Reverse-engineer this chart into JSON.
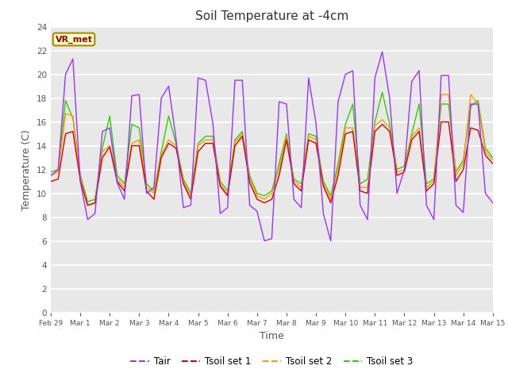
{
  "title": "Soil Temperature at -4cm",
  "xlabel": "Time",
  "ylabel": "Temperature (C)",
  "ylim": [
    0,
    24
  ],
  "yticks": [
    0,
    2,
    4,
    6,
    8,
    10,
    12,
    14,
    16,
    18,
    20,
    22,
    24
  ],
  "bg_color": "#e8e8e8",
  "fig_bg": "#ffffff",
  "legend_label": "VR_met",
  "line_colors": {
    "Tair": "#9933ff",
    "Tsoil set 1": "#dd0000",
    "Tsoil set 2": "#ff9900",
    "Tsoil set 3": "#33cc00"
  },
  "xtick_labels": [
    "Feb 29",
    "Mar 1",
    "Mar 2",
    "Mar 3",
    "Mar 4",
    "Mar 5",
    "Mar 6",
    "Mar 7",
    "Mar 8",
    "Mar 9",
    "Mar 10",
    "Mar 11",
    "Mar 12",
    "Mar 13",
    "Mar 14",
    "Mar 15"
  ],
  "Tair": [
    11.5,
    12.0,
    20.0,
    21.3,
    11.0,
    7.8,
    8.3,
    15.2,
    15.5,
    10.9,
    9.5,
    18.2,
    18.3,
    10.0,
    10.5,
    18.0,
    19.0,
    14.6,
    8.8,
    9.0,
    19.7,
    19.5,
    15.9,
    8.3,
    8.8,
    19.5,
    19.5,
    9.0,
    8.5,
    6.0,
    6.2,
    17.7,
    17.5,
    9.5,
    8.8,
    19.7,
    15.9,
    8.3,
    6.0,
    17.7,
    20.0,
    20.3,
    9.0,
    7.8,
    19.7,
    21.9,
    18.0,
    10.0,
    12.0,
    19.4,
    20.3,
    9.0,
    7.8,
    19.9,
    19.9,
    9.0,
    8.4,
    17.5,
    17.5,
    10.0,
    9.2
  ],
  "Tsoil1": [
    11.0,
    11.2,
    15.0,
    15.2,
    11.1,
    9.0,
    9.2,
    13.0,
    13.9,
    11.0,
    10.2,
    14.0,
    14.0,
    10.2,
    9.5,
    13.0,
    14.2,
    13.8,
    10.8,
    9.5,
    13.5,
    14.2,
    14.2,
    10.6,
    9.8,
    14.0,
    14.8,
    10.9,
    9.5,
    9.2,
    9.5,
    11.5,
    14.5,
    10.8,
    10.2,
    14.5,
    14.2,
    10.6,
    9.2,
    11.5,
    15.0,
    15.2,
    10.2,
    10.0,
    15.2,
    15.8,
    15.2,
    11.5,
    11.8,
    14.5,
    15.2,
    10.2,
    10.8,
    16.0,
    16.0,
    11.0,
    12.0,
    15.5,
    15.3,
    13.2,
    12.5
  ],
  "Tsoil2": [
    11.5,
    11.8,
    16.7,
    16.5,
    11.5,
    9.0,
    9.2,
    13.5,
    14.0,
    11.2,
    10.5,
    14.2,
    14.5,
    10.5,
    10.0,
    13.2,
    14.5,
    14.0,
    11.0,
    9.7,
    14.0,
    14.5,
    14.5,
    10.8,
    9.9,
    14.3,
    15.0,
    11.2,
    9.8,
    9.5,
    10.0,
    12.0,
    14.8,
    11.0,
    10.5,
    14.8,
    14.5,
    10.8,
    9.5,
    12.0,
    15.5,
    15.5,
    10.5,
    10.5,
    15.7,
    16.2,
    15.5,
    11.8,
    12.0,
    14.8,
    15.5,
    10.5,
    11.0,
    18.3,
    18.3,
    11.5,
    12.5,
    18.3,
    17.5,
    13.5,
    12.8
  ],
  "Tsoil3": [
    11.8,
    12.0,
    17.8,
    16.3,
    11.6,
    9.3,
    9.5,
    13.8,
    16.5,
    11.5,
    10.8,
    15.8,
    15.5,
    10.8,
    10.2,
    13.5,
    16.5,
    14.2,
    11.2,
    10.0,
    14.2,
    14.8,
    14.8,
    11.0,
    10.2,
    14.5,
    15.2,
    11.5,
    10.0,
    9.8,
    10.2,
    12.5,
    15.0,
    11.2,
    10.8,
    15.0,
    14.8,
    11.0,
    9.8,
    12.5,
    15.8,
    17.5,
    10.8,
    11.2,
    16.0,
    18.5,
    15.8,
    12.0,
    12.3,
    15.0,
    17.5,
    10.8,
    11.2,
    17.5,
    17.5,
    11.8,
    12.8,
    17.3,
    17.8,
    13.8,
    13.0
  ]
}
